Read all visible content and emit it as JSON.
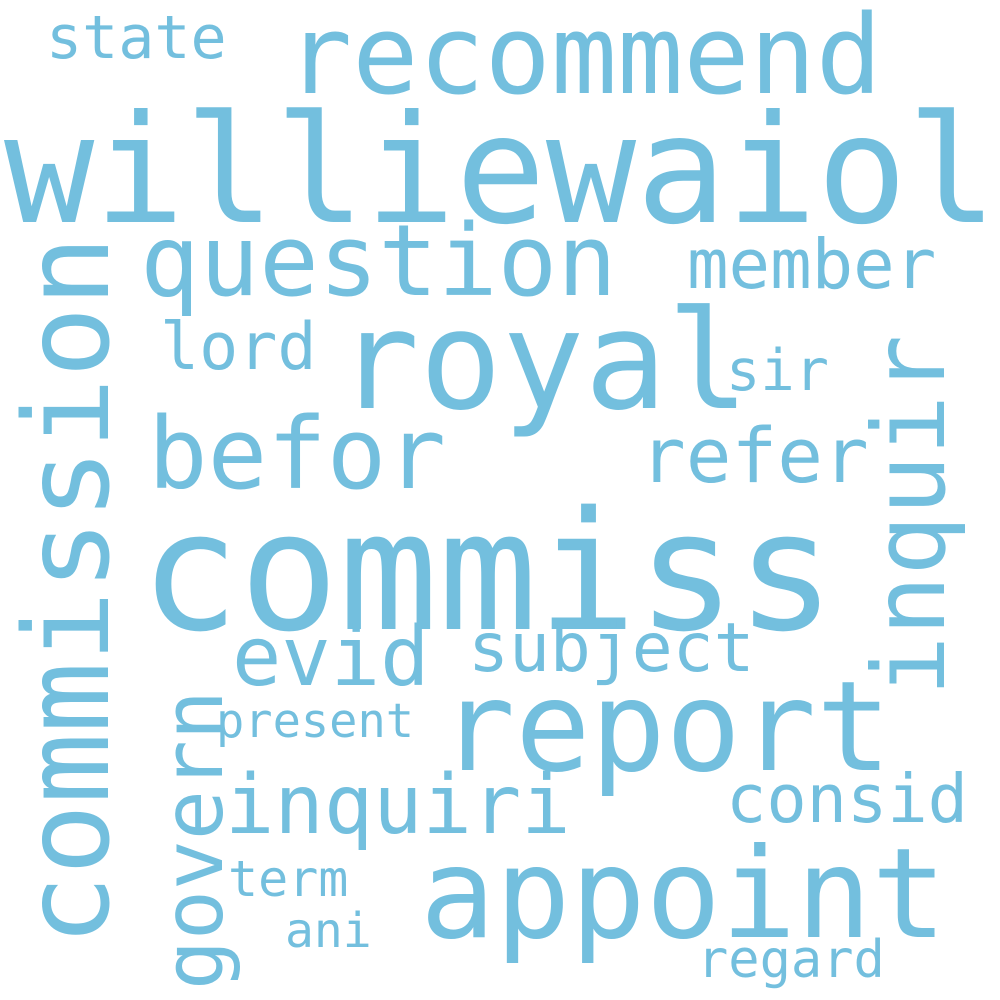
{
  "color": "#73bfde",
  "words": {
    "williewaiola": "williewaiola",
    "commiss": "commiss",
    "royal": "royal",
    "recommend": "recommend",
    "question": "question",
    "report": "report",
    "appoint": "appoint",
    "commission": "commission",
    "befor": "befor",
    "inquir": "inquir",
    "member": "member",
    "refer": "refer",
    "evid": "evid",
    "subject": "subject",
    "inquiri": "inquiri",
    "govern": "govern",
    "state": "state",
    "lord": "lord",
    "sir": "sir",
    "present": "present",
    "consid": "consid",
    "term": "term",
    "ani": "ani",
    "regard": "regard"
  }
}
